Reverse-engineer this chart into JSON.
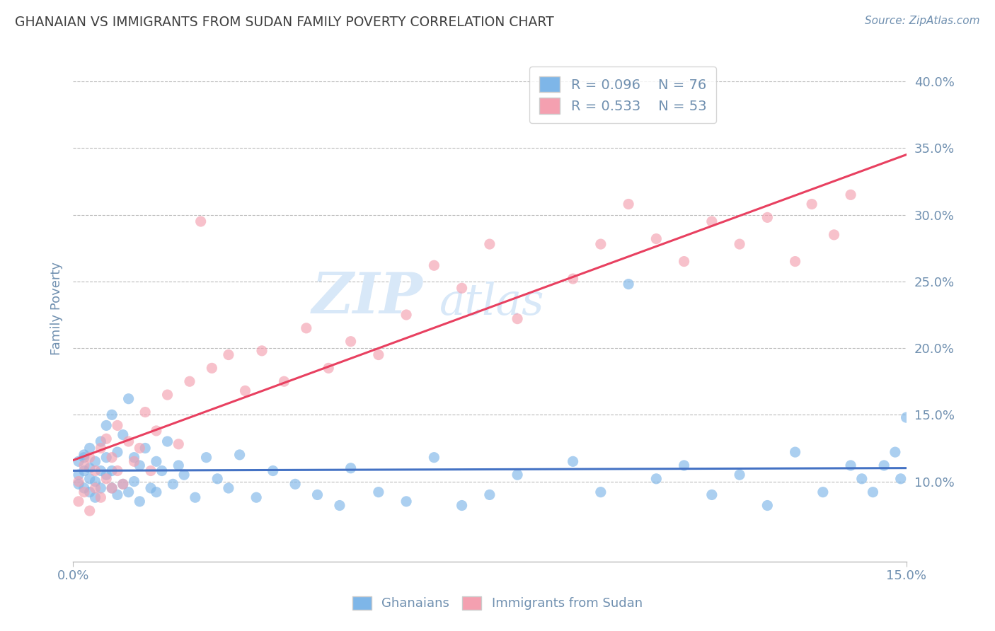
{
  "title": "GHANAIAN VS IMMIGRANTS FROM SUDAN FAMILY POVERTY CORRELATION CHART",
  "source_text": "Source: ZipAtlas.com",
  "ylabel": "Family Poverty",
  "xlim": [
    0.0,
    0.15
  ],
  "ylim": [
    0.04,
    0.42
  ],
  "ytick_labels": [
    "10.0%",
    "15.0%",
    "20.0%",
    "25.0%",
    "30.0%",
    "35.0%",
    "40.0%"
  ],
  "ytick_values": [
    0.1,
    0.15,
    0.2,
    0.25,
    0.3,
    0.35,
    0.4
  ],
  "ghanaian_R": 0.096,
  "ghanaian_N": 76,
  "sudan_R": 0.533,
  "sudan_N": 53,
  "ghanaian_color": "#7EB6E8",
  "sudan_color": "#F4A0B0",
  "ghanaian_line_color": "#4472C4",
  "sudan_line_color": "#E84060",
  "title_color": "#404040",
  "axis_color": "#7090B0",
  "watermark_color": "#D8E8F8",
  "background_color": "#FFFFFF",
  "ghanaian_x": [
    0.001,
    0.001,
    0.001,
    0.002,
    0.002,
    0.002,
    0.002,
    0.003,
    0.003,
    0.003,
    0.003,
    0.004,
    0.004,
    0.004,
    0.005,
    0.005,
    0.005,
    0.006,
    0.006,
    0.006,
    0.007,
    0.007,
    0.007,
    0.008,
    0.008,
    0.009,
    0.009,
    0.01,
    0.01,
    0.011,
    0.011,
    0.012,
    0.012,
    0.013,
    0.014,
    0.015,
    0.015,
    0.016,
    0.017,
    0.018,
    0.019,
    0.02,
    0.022,
    0.024,
    0.026,
    0.028,
    0.03,
    0.033,
    0.036,
    0.04,
    0.044,
    0.048,
    0.05,
    0.055,
    0.06,
    0.065,
    0.07,
    0.075,
    0.08,
    0.09,
    0.095,
    0.1,
    0.105,
    0.11,
    0.115,
    0.12,
    0.125,
    0.13,
    0.135,
    0.14,
    0.142,
    0.144,
    0.146,
    0.148,
    0.149,
    0.15
  ],
  "ghanaian_y": [
    0.115,
    0.098,
    0.105,
    0.12,
    0.108,
    0.095,
    0.118,
    0.11,
    0.102,
    0.125,
    0.092,
    0.115,
    0.1,
    0.088,
    0.13,
    0.108,
    0.095,
    0.142,
    0.105,
    0.118,
    0.095,
    0.15,
    0.108,
    0.122,
    0.09,
    0.135,
    0.098,
    0.162,
    0.092,
    0.118,
    0.1,
    0.112,
    0.085,
    0.125,
    0.095,
    0.115,
    0.092,
    0.108,
    0.13,
    0.098,
    0.112,
    0.105,
    0.088,
    0.118,
    0.102,
    0.095,
    0.12,
    0.088,
    0.108,
    0.098,
    0.09,
    0.082,
    0.11,
    0.092,
    0.085,
    0.118,
    0.082,
    0.09,
    0.105,
    0.115,
    0.092,
    0.248,
    0.102,
    0.112,
    0.09,
    0.105,
    0.082,
    0.122,
    0.092,
    0.112,
    0.102,
    0.092,
    0.112,
    0.122,
    0.102,
    0.148
  ],
  "sudan_x": [
    0.001,
    0.001,
    0.002,
    0.002,
    0.003,
    0.003,
    0.004,
    0.004,
    0.005,
    0.005,
    0.006,
    0.006,
    0.007,
    0.007,
    0.008,
    0.008,
    0.009,
    0.01,
    0.011,
    0.012,
    0.013,
    0.014,
    0.015,
    0.017,
    0.019,
    0.021,
    0.023,
    0.025,
    0.028,
    0.031,
    0.034,
    0.038,
    0.042,
    0.046,
    0.05,
    0.055,
    0.06,
    0.065,
    0.07,
    0.075,
    0.08,
    0.09,
    0.095,
    0.1,
    0.105,
    0.11,
    0.115,
    0.12,
    0.125,
    0.13,
    0.133,
    0.137,
    0.14
  ],
  "sudan_y": [
    0.1,
    0.085,
    0.112,
    0.092,
    0.118,
    0.078,
    0.108,
    0.095,
    0.125,
    0.088,
    0.132,
    0.102,
    0.118,
    0.095,
    0.142,
    0.108,
    0.098,
    0.13,
    0.115,
    0.125,
    0.152,
    0.108,
    0.138,
    0.165,
    0.128,
    0.175,
    0.295,
    0.185,
    0.195,
    0.168,
    0.198,
    0.175,
    0.215,
    0.185,
    0.205,
    0.195,
    0.225,
    0.262,
    0.245,
    0.278,
    0.222,
    0.252,
    0.278,
    0.308,
    0.282,
    0.265,
    0.295,
    0.278,
    0.298,
    0.265,
    0.308,
    0.285,
    0.315
  ]
}
